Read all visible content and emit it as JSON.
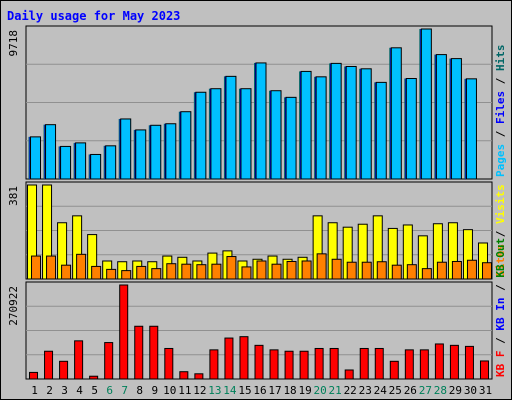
{
  "chart_data": {
    "type": "bar",
    "title": "Daily usage for May 2023",
    "categories": [
      "1",
      "2",
      "3",
      "4",
      "5",
      "6",
      "7",
      "8",
      "9",
      "10",
      "11",
      "12",
      "13",
      "14",
      "15",
      "16",
      "17",
      "18",
      "19",
      "20",
      "21",
      "22",
      "23",
      "24",
      "25",
      "26",
      "27",
      "28",
      "29",
      "30",
      "31"
    ],
    "weekend_days": [
      "6",
      "7",
      "13",
      "14",
      "20",
      "21",
      "27",
      "28"
    ],
    "panels": [
      {
        "id": "hits",
        "max_label": "9718",
        "ymax": 9718,
        "axis_labels": [
          "Pages",
          "Files",
          "Hits"
        ],
        "series": [
          {
            "name": "Hits",
            "color": "#006666",
            "values": [
              2730,
              3520,
              2110,
              2340,
              1590,
              2150,
              3890,
              3180,
              3480,
              3580,
              4360,
              5620,
              5850,
              6650,
              5850,
              7520,
              5720,
              5290,
              6970,
              6620,
              7490,
              7290,
              7140,
              6260,
              8500,
              6510,
              9718,
              8060,
              7800,
              6490,
              0
            ]
          },
          {
            "name": "Files",
            "color": "#0000ff",
            "values": [
              2730,
              3520,
              2110,
              2340,
              1590,
              2150,
              3890,
              3180,
              3480,
              3580,
              4360,
              5620,
              5850,
              6650,
              5850,
              7520,
              5720,
              5290,
              6970,
              6620,
              7490,
              7290,
              7140,
              6260,
              8500,
              6510,
              9718,
              8060,
              7800,
              6490,
              0
            ]
          },
          {
            "name": "Pages",
            "color": "#00c0ff",
            "values": [
              2730,
              3520,
              2110,
              2340,
              1590,
              2150,
              3890,
              3180,
              3480,
              3580,
              4360,
              5620,
              5850,
              6650,
              5850,
              7520,
              5720,
              5290,
              6970,
              6620,
              7490,
              7290,
              7140,
              6260,
              8500,
              6510,
              9718,
              8060,
              7800,
              6490,
              0
            ]
          }
        ]
      },
      {
        "id": "visits",
        "max_label": "381",
        "ymax": 381,
        "axis_labels": [
          "Visits",
          "Sites"
        ],
        "series": [
          {
            "name": "Visits",
            "color": "#ffff00",
            "values": [
              381,
              381,
              228,
              256,
              180,
              73,
              70,
              73,
              70,
              93,
              88,
              73,
              105,
              114,
              73,
              80,
              93,
              80,
              88,
              256,
              228,
              210,
              222,
              256,
              205,
              219,
              175,
              224,
              228,
              200,
              146
            ]
          },
          {
            "name": "Sites",
            "color": "#ff8000",
            "values": [
              93,
              93,
              56,
              100,
              51,
              39,
              34,
              51,
              42,
              62,
              60,
              58,
              60,
              91,
              49,
              73,
              60,
              71,
              73,
              102,
              80,
              68,
              68,
              70,
              56,
              58,
              42,
              68,
              71,
              76,
              66
            ]
          }
        ]
      },
      {
        "id": "kbytes",
        "max_label": "270922",
        "ymax": 270922,
        "axis_labels": [
          "KB F",
          "KB In",
          "KB Out"
        ],
        "series": [
          {
            "name": "KB F",
            "color": "#ff0000",
            "values": [
              19000,
              80000,
              51000,
              110000,
              8000,
              105000,
              270922,
              152000,
              152000,
              88000,
              21000,
              15000,
              84000,
              118000,
              122000,
              97000,
              84000,
              80000,
              80000,
              88000,
              88000,
              26000,
              88000,
              88000,
              51000,
              84000,
              84000,
              101000,
              97000,
              94000,
              52000
            ]
          },
          {
            "name": "KB In",
            "color": "#0000ff",
            "values": []
          },
          {
            "name": "KB Out",
            "color": "#008000",
            "values": []
          }
        ]
      }
    ],
    "colors": {
      "background": "#c0c0c0",
      "title": "#0000ff",
      "weekday_label": "#000000",
      "weekend_label": "#00805a"
    }
  }
}
